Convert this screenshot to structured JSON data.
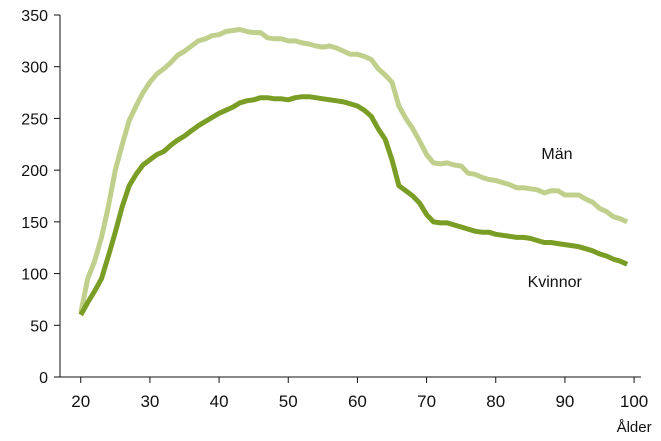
{
  "chart_data": {
    "type": "line",
    "title": "",
    "xlabel": "Ålder",
    "ylabel": "",
    "xlim": [
      17,
      101
    ],
    "ylim": [
      0,
      350
    ],
    "x_ticks": [
      "20",
      "30",
      "40",
      "50",
      "60",
      "70",
      "80",
      "90",
      "100"
    ],
    "y_ticks": [
      "0",
      "50",
      "100",
      "150",
      "200",
      "250",
      "300",
      "350"
    ],
    "grid": false,
    "legend": "none",
    "series": [
      {
        "name": "Män",
        "color": "#c0d08c",
        "x": [
          20,
          21,
          22,
          23,
          24,
          25,
          26,
          27,
          28,
          29,
          30,
          31,
          32,
          33,
          34,
          35,
          36,
          37,
          38,
          39,
          40,
          41,
          42,
          43,
          44,
          45,
          46,
          47,
          48,
          49,
          50,
          51,
          52,
          53,
          54,
          55,
          56,
          57,
          58,
          59,
          60,
          61,
          62,
          63,
          64,
          65,
          66,
          67,
          68,
          69,
          70,
          71,
          72,
          73,
          74,
          75,
          76,
          77,
          78,
          79,
          80,
          81,
          82,
          83,
          84,
          85,
          86,
          87,
          88,
          89,
          90,
          91,
          92,
          93,
          94,
          95,
          96,
          97,
          98,
          99
        ],
        "values": [
          62,
          95,
          112,
          135,
          165,
          200,
          225,
          248,
          262,
          275,
          285,
          293,
          298,
          304,
          311,
          315,
          320,
          325,
          327,
          330,
          331,
          334,
          335,
          336,
          334,
          333,
          333,
          328,
          327,
          327,
          325,
          325,
          323,
          322,
          320,
          319,
          320,
          318,
          315,
          312,
          312,
          310,
          307,
          298,
          292,
          285,
          262,
          250,
          240,
          228,
          215,
          207,
          206,
          207,
          205,
          204,
          197,
          196,
          193,
          191,
          190,
          188,
          186,
          183,
          183,
          182,
          181,
          178,
          180,
          180,
          176,
          176,
          176,
          172,
          169,
          163,
          160,
          155,
          153,
          150
        ]
      },
      {
        "name": "Kvinnor",
        "color": "#7a9d26",
        "x": [
          20,
          21,
          22,
          23,
          24,
          25,
          26,
          27,
          28,
          29,
          30,
          31,
          32,
          33,
          34,
          35,
          36,
          37,
          38,
          39,
          40,
          41,
          42,
          43,
          44,
          45,
          46,
          47,
          48,
          49,
          50,
          51,
          52,
          53,
          54,
          55,
          56,
          57,
          58,
          59,
          60,
          61,
          62,
          63,
          64,
          65,
          66,
          67,
          68,
          69,
          70,
          71,
          72,
          73,
          74,
          75,
          76,
          77,
          78,
          79,
          80,
          81,
          82,
          83,
          84,
          85,
          86,
          87,
          88,
          89,
          90,
          91,
          92,
          93,
          94,
          95,
          96,
          97,
          98,
          99
        ],
        "values": [
          60,
          72,
          83,
          95,
          117,
          140,
          165,
          185,
          196,
          205,
          210,
          215,
          218,
          224,
          229,
          233,
          238,
          243,
          247,
          251,
          255,
          258,
          261,
          265,
          267,
          268,
          270,
          270,
          269,
          269,
          268,
          270,
          271,
          271,
          270,
          269,
          268,
          267,
          266,
          264,
          262,
          258,
          252,
          240,
          230,
          210,
          185,
          180,
          175,
          168,
          157,
          150,
          149,
          149,
          147,
          145,
          143,
          141,
          140,
          140,
          138,
          137,
          136,
          135,
          135,
          134,
          132,
          130,
          130,
          129,
          128,
          127,
          126,
          124,
          122,
          119,
          117,
          114,
          112,
          109
        ]
      }
    ]
  }
}
